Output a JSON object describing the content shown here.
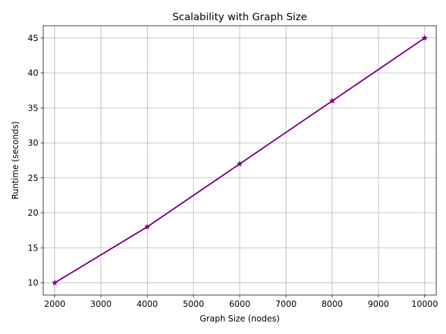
{
  "chart_data": {
    "type": "line",
    "title": "Scalability with Graph Size",
    "xlabel": "Graph Size (nodes)",
    "ylabel": "Runtime (seconds)",
    "x": [
      2000,
      4000,
      6000,
      8000,
      10000
    ],
    "series": [
      {
        "values": [
          10,
          18,
          27,
          36,
          45
        ],
        "color": "#800080",
        "marker": "star"
      }
    ],
    "xlim": [
      1750,
      10250
    ],
    "ylim": [
      8.25,
      46.75
    ],
    "xticks": [
      2000,
      3000,
      4000,
      5000,
      6000,
      7000,
      8000,
      9000,
      10000
    ],
    "yticks": [
      10,
      15,
      20,
      25,
      30,
      35,
      40,
      45
    ],
    "grid": true,
    "legend": "none"
  }
}
